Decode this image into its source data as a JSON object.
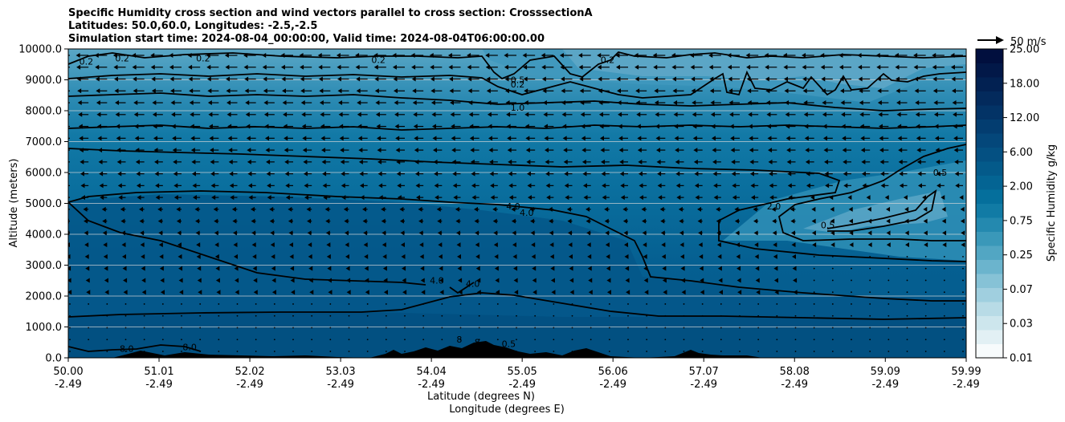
{
  "title": {
    "line1": "Specific Humidity cross section and wind vectors parallel to cross section: CrosssectionA",
    "line2": "Latitudes: 50.0,60.0, Longitudes: -2.5,-2.5",
    "line3": "Simulation start time: 2024-08-04_00:00:00, Valid time: 2024-08-04T06:00:00.00"
  },
  "chart_data": {
    "type": "contour",
    "ylabel": "Altitude (meters)",
    "xlabel_lat": "Latitude (degrees N)",
    "xlabel_lon": "Longitude (degrees E)",
    "ylim": [
      0,
      10000
    ],
    "y_ticks": [
      "0.0",
      "1000.0",
      "2000.0",
      "3000.0",
      "4000.0",
      "5000.0",
      "6000.0",
      "7000.0",
      "8000.0",
      "9000.0",
      "10000.0"
    ],
    "x_ticks_lat": [
      "50.00",
      "51.01",
      "52.02",
      "53.03",
      "54.04",
      "55.05",
      "56.06",
      "57.07",
      "58.08",
      "59.09",
      "59.99"
    ],
    "x_ticks_lon": [
      "-2.49",
      "-2.49",
      "-2.49",
      "-2.49",
      "-2.49",
      "-2.49",
      "-2.49",
      "-2.49",
      "-2.49",
      "-2.49",
      "-2.49"
    ],
    "grid_y": true,
    "colorbar": {
      "label": "Specific Humidity g/kg",
      "tick_labels": [
        "0.01",
        "0.03",
        "0.07",
        "0.25",
        "0.75",
        "2.00",
        "6.00",
        "12.00",
        "18.00",
        "25.00"
      ],
      "colors": [
        "#f7fbfc",
        "#e2f0f4",
        "#cde6ed",
        "#b8dbe6",
        "#a0cfdf",
        "#86c2d6",
        "#6bb4cd",
        "#52a6c3",
        "#3a98b9",
        "#2489af",
        "#117ba5",
        "#056f9c",
        "#046493",
        "#045a8a",
        "#045082",
        "#04477a",
        "#033d70",
        "#033366",
        "#032a5c",
        "#022152",
        "#021848",
        "#010f3e"
      ]
    },
    "quiver_key": "50 m/s",
    "contour_labels": [
      {
        "value": "0.2",
        "lat": 50.2,
        "alt": 9500
      },
      {
        "value": "0.2",
        "lat": 50.6,
        "alt": 9600
      },
      {
        "value": "0.2",
        "lat": 51.5,
        "alt": 9600
      },
      {
        "value": "0.2",
        "lat": 53.45,
        "alt": 9550
      },
      {
        "value": "0.2",
        "lat": 55.0,
        "alt": 8750
      },
      {
        "value": "0.5",
        "lat": 55.0,
        "alt": 8900
      },
      {
        "value": "0.2",
        "lat": 56.0,
        "alt": 9550
      },
      {
        "value": "1.0",
        "lat": 55.0,
        "alt": 8000
      },
      {
        "value": "4.0",
        "lat": 54.95,
        "alt": 4800
      },
      {
        "value": "4.0",
        "lat": 55.1,
        "alt": 4600
      },
      {
        "value": "4.0",
        "lat": 54.1,
        "alt": 2400
      },
      {
        "value": "4.0",
        "lat": 54.5,
        "alt": 2300
      },
      {
        "value": "2.0",
        "lat": 57.85,
        "alt": 4800
      },
      {
        "value": "0.5",
        "lat": 58.45,
        "alt": 4200
      },
      {
        "value": "0.5",
        "lat": 59.7,
        "alt": 5900
      },
      {
        "value": "8.0",
        "lat": 50.65,
        "alt": 200
      },
      {
        "value": "8.0",
        "lat": 51.35,
        "alt": 250
      },
      {
        "value": "8",
        "lat": 54.35,
        "alt": 500
      },
      {
        "value": "8",
        "lat": 54.55,
        "alt": 400
      },
      {
        "value": "0.5",
        "lat": 54.9,
        "alt": 350
      }
    ]
  },
  "colors": {
    "dark_blue": "#045a8d",
    "mid_blue": "#0a73a3",
    "light_blue": "#62a9c8",
    "contour": "#000000",
    "grid": "#d9d9d9"
  }
}
